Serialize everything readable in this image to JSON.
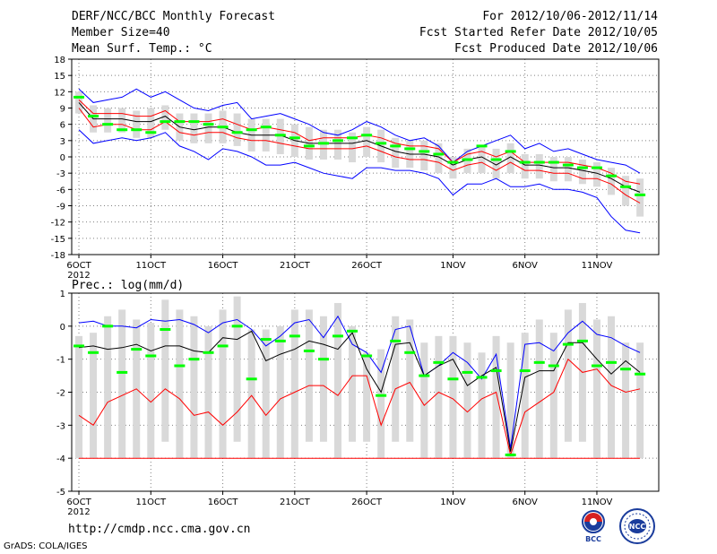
{
  "header": {
    "title": "DERF/NCC/BCC Monthly Forecast",
    "member_size": "Member Size=40",
    "variable": "Mean Surf. Temp.: °C",
    "forecast_period": "For 2012/10/06-2012/11/14",
    "started_refer": "Fcst Started Refer Date 2012/10/05",
    "produced": "Fcst Produced Date 2012/10/06"
  },
  "footer": {
    "url": "http://cmdp.ncc.cma.gov.cn",
    "credit": "GrADS: COLA/IGES",
    "logo_bcc": "BCC",
    "logo_ncc": "NCC"
  },
  "colors": {
    "max_line": "#0000ff",
    "min_line": "#ff0000",
    "mean_line": "#000000",
    "box": "#d9d9d9",
    "obs_mark": "#00ff00",
    "grid": "#808080"
  },
  "chart_data": [
    {
      "type": "line",
      "title": "Mean Surf. Temp.: °C",
      "x": [
        1,
        2,
        3,
        4,
        5,
        6,
        7,
        8,
        9,
        10,
        11,
        12,
        13,
        14,
        15,
        16,
        17,
        18,
        19,
        20,
        21,
        22,
        23,
        24,
        25,
        26,
        27,
        28,
        29,
        30,
        31,
        32,
        33,
        34,
        35,
        36,
        37,
        38,
        39,
        40
      ],
      "x_tick_labels": [
        {
          "x": 1,
          "label": "6OCT",
          "sub": "2012"
        },
        {
          "x": 6,
          "label": "11OCT"
        },
        {
          "x": 11,
          "label": "16OCT"
        },
        {
          "x": 16,
          "label": "21OCT"
        },
        {
          "x": 21,
          "label": "26OCT"
        },
        {
          "x": 27,
          "label": "1NOV"
        },
        {
          "x": 32,
          "label": "6NOV"
        },
        {
          "x": 37,
          "label": "11NOV"
        }
      ],
      "ylim": [
        -18,
        18
      ],
      "y_ticks": [
        -18,
        -15,
        -12,
        -9,
        -6,
        -3,
        0,
        3,
        6,
        9,
        12,
        15,
        18
      ],
      "series": [
        {
          "name": "max",
          "color": "#0000ff",
          "values": [
            12.5,
            10,
            10.5,
            11,
            12.5,
            11,
            12,
            10.5,
            9,
            8.5,
            9.5,
            10,
            7,
            7.5,
            8,
            7,
            6,
            4.5,
            4,
            5,
            6.5,
            5.5,
            4,
            3,
            3.5,
            2,
            -1,
            1,
            2,
            3,
            4,
            1.5,
            2.5,
            1,
            1.5,
            0.5,
            -0.5,
            -1,
            -1.5,
            -3
          ]
        },
        {
          "name": "upper",
          "color": "#ff0000",
          "values": [
            10.5,
            8,
            8,
            8,
            7.5,
            7.5,
            8.5,
            6.5,
            6.5,
            6.5,
            7,
            6,
            5,
            5.5,
            5,
            4.5,
            3,
            3.5,
            3.5,
            3.5,
            4,
            3.5,
            2.5,
            2,
            2,
            1.5,
            -1,
            0.5,
            1,
            0,
            1,
            -1,
            -1,
            -1,
            -1,
            -1.5,
            -2,
            -3,
            -4.5,
            -5
          ]
        },
        {
          "name": "mean",
          "color": "#000000",
          "values": [
            10,
            7,
            7,
            7,
            6.5,
            6.5,
            7.5,
            5.5,
            5,
            5.5,
            5.5,
            4.5,
            4,
            4,
            4,
            3,
            2.5,
            2.5,
            2.5,
            2.5,
            3,
            2,
            1,
            0.5,
            0.5,
            0,
            -1.5,
            -0.5,
            0,
            -1.5,
            0,
            -1.5,
            -1.5,
            -2,
            -2,
            -2.5,
            -3,
            -4,
            -5.5,
            -6.5
          ]
        },
        {
          "name": "lower",
          "color": "#ff0000",
          "values": [
            9,
            5.5,
            6,
            6,
            5,
            5,
            6.5,
            4.5,
            4,
            4.5,
            4.5,
            3.5,
            3,
            3,
            2.5,
            2,
            1.5,
            1.5,
            1.5,
            1.5,
            2,
            1,
            0,
            -0.5,
            -0.5,
            -1,
            -2.5,
            -1.5,
            -1,
            -2.5,
            -1,
            -2.5,
            -2.5,
            -3,
            -3,
            -4,
            -4,
            -5,
            -7,
            -8.5
          ]
        },
        {
          "name": "min",
          "color": "#0000ff",
          "values": [
            5,
            2.5,
            3,
            3.5,
            3,
            3.5,
            4.5,
            2,
            1,
            -0.5,
            1.5,
            1,
            0,
            -1.5,
            -1.5,
            -1,
            -2,
            -3,
            -3.5,
            -4,
            -2,
            -2,
            -2.5,
            -2.5,
            -3,
            -4,
            -7,
            -5,
            -5,
            -4,
            -5.5,
            -5.5,
            -5,
            -6,
            -6,
            -6.5,
            -7.5,
            -11,
            -13.5,
            -14
          ]
        }
      ],
      "boxes": {
        "low": [
          8,
          4.5,
          4.5,
          4.5,
          3.5,
          3.5,
          5,
          3,
          2.5,
          2.5,
          2.5,
          2,
          1,
          1,
          0.5,
          0,
          -0.5,
          -0.5,
          -0.5,
          -1,
          0,
          -1,
          -2,
          -2,
          -2.5,
          -3,
          -4,
          -3,
          -3,
          -4,
          -3,
          -4,
          -4,
          -4.5,
          -4.5,
          -5,
          -5.5,
          -7,
          -9,
          -11
        ],
        "high": [
          12,
          9.5,
          9,
          9,
          8.5,
          9,
          9.5,
          8,
          8,
          8,
          8.5,
          8,
          7,
          7,
          7,
          6,
          5.5,
          5,
          5,
          4.5,
          5.5,
          5,
          3.5,
          3,
          3,
          2.5,
          0,
          1.5,
          2,
          1.5,
          2.5,
          0.5,
          0.5,
          0,
          0,
          -0.5,
          -1,
          -2,
          -3.5,
          -4
        ]
      },
      "observed": [
        11,
        7.5,
        6,
        5,
        5,
        4.5,
        6.5,
        6.5,
        6.5,
        6,
        5.5,
        4.5,
        5,
        5.5,
        4,
        3.5,
        2,
        2.5,
        3,
        3.5,
        4,
        2.5,
        2,
        1.5,
        1,
        0.5,
        -1,
        -0.5,
        2,
        -0.5,
        1,
        -1,
        -1,
        -1,
        -1.5,
        -2,
        -2,
        -3.5,
        -5.5,
        -7
      ]
    },
    {
      "type": "line",
      "title": "Prec.: log(mm/d)",
      "x": [
        1,
        2,
        3,
        4,
        5,
        6,
        7,
        8,
        9,
        10,
        11,
        12,
        13,
        14,
        15,
        16,
        17,
        18,
        19,
        20,
        21,
        22,
        23,
        24,
        25,
        26,
        27,
        28,
        29,
        30,
        31,
        32,
        33,
        34,
        35,
        36,
        37,
        38,
        39,
        40
      ],
      "x_tick_labels": [
        {
          "x": 1,
          "label": "6OCT",
          "sub": "2012"
        },
        {
          "x": 6,
          "label": "11OCT"
        },
        {
          "x": 11,
          "label": "16OCT"
        },
        {
          "x": 16,
          "label": "21OCT"
        },
        {
          "x": 21,
          "label": "26OCT"
        },
        {
          "x": 27,
          "label": "1NOV"
        },
        {
          "x": 32,
          "label": "6NOV"
        },
        {
          "x": 37,
          "label": "11NOV"
        }
      ],
      "ylim": [
        -5,
        1
      ],
      "y_ticks": [
        -5,
        -4,
        -3,
        -2,
        -1,
        0,
        1
      ],
      "series": [
        {
          "name": "max",
          "color": "#0000ff",
          "values": [
            0.1,
            0.15,
            0,
            0,
            -0.05,
            0.2,
            0.15,
            0.2,
            0.05,
            -0.2,
            0.1,
            0.2,
            -0.1,
            -0.6,
            -0.3,
            0.1,
            0.2,
            -0.35,
            0.3,
            -0.55,
            -0.8,
            -1.4,
            -0.1,
            0,
            -1.5,
            -1.2,
            -0.8,
            -1.1,
            -1.6,
            -0.85,
            -3.7,
            -0.55,
            -0.5,
            -0.75,
            -0.2,
            0.15,
            -0.25,
            -0.35,
            -0.6,
            -0.8
          ]
        },
        {
          "name": "mean",
          "color": "#000000",
          "values": [
            -0.65,
            -0.6,
            -0.7,
            -0.65,
            -0.55,
            -0.75,
            -0.6,
            -0.6,
            -0.75,
            -0.8,
            -0.35,
            -0.4,
            -0.15,
            -1.05,
            -0.85,
            -0.7,
            -0.45,
            -0.55,
            -0.7,
            -0.2,
            -1.3,
            -2,
            -0.55,
            -0.5,
            -1.5,
            -1.2,
            -1,
            -1.8,
            -1.5,
            -1.25,
            -3.8,
            -1.55,
            -1.35,
            -1.35,
            -0.5,
            -0.5,
            -1,
            -1.45,
            -1.05,
            -1.4
          ]
        },
        {
          "name": "min",
          "color": "#ff0000",
          "values": [
            -2.7,
            -3,
            -2.3,
            -2.1,
            -1.9,
            -2.3,
            -1.9,
            -2.2,
            -2.7,
            -2.6,
            -3,
            -2.6,
            -2.1,
            -2.7,
            -2.2,
            -2,
            -1.8,
            -1.8,
            -2.1,
            -1.5,
            -1.5,
            -3,
            -1.9,
            -1.7,
            -2.4,
            -2,
            -2.2,
            -2.6,
            -2.2,
            -2,
            -3.9,
            -2.6,
            -2.3,
            -2,
            -1,
            -1.4,
            -1.3,
            -1.8,
            -2,
            -1.9
          ]
        },
        {
          "name": "floor",
          "color": "#ff0000",
          "values": [
            -4,
            -4,
            -4,
            -4,
            -4,
            -4,
            -4,
            -4,
            -4,
            -4,
            -4,
            -4,
            -4,
            -4,
            -4,
            -4,
            -4,
            -4,
            -4,
            -4,
            -4,
            -4,
            -4,
            -4,
            -4,
            -4,
            -4,
            -4,
            -4,
            -4,
            -4,
            -4,
            -4,
            -4,
            -4,
            -4,
            -4,
            -4,
            -4,
            -4
          ]
        }
      ],
      "boxes": {
        "low": [
          -4,
          -4,
          -4,
          -4,
          -4,
          -4,
          -3.5,
          -4,
          -4,
          -4,
          -4,
          -3.5,
          -4,
          -4,
          -4,
          -4,
          -3.5,
          -3.5,
          -4,
          -3.5,
          -3.5,
          -4,
          -3.5,
          -3.5,
          -4,
          -4,
          -4,
          -4,
          -4,
          -4,
          -4,
          -4,
          -4,
          -4,
          -3.5,
          -3.5,
          -4,
          -4,
          -4,
          -4
        ],
        "high": [
          -0.3,
          -0.2,
          0.3,
          0.5,
          0.2,
          0.1,
          0.8,
          0.5,
          0.3,
          0,
          0.5,
          0.9,
          -0.1,
          -0.1,
          0,
          0.5,
          0.5,
          0.3,
          0.7,
          0,
          -0.8,
          -0.7,
          0.3,
          0.2,
          -0.5,
          -0.3,
          -0.3,
          -0.5,
          -0.8,
          -0.3,
          -0.5,
          -0.2,
          0.2,
          -0.2,
          0.5,
          0.7,
          0.2,
          0.3,
          -0.5,
          -0.5
        ]
      },
      "observed": [
        -0.6,
        -0.8,
        0,
        -1.4,
        -0.7,
        -0.9,
        -0.1,
        -1.2,
        -1,
        -0.8,
        -0.6,
        0,
        -1.6,
        -0.4,
        -0.45,
        -0.3,
        -0.75,
        -1,
        -0.3,
        -0.15,
        -0.9,
        -2.1,
        -0.45,
        -0.8,
        -1.5,
        -1.1,
        -1.6,
        -1.4,
        -1.55,
        -1.35,
        -3.9,
        -1.35,
        -1.1,
        -1.2,
        -0.55,
        -0.45,
        -1.2,
        -1.1,
        -1.3,
        -1.45
      ]
    }
  ]
}
